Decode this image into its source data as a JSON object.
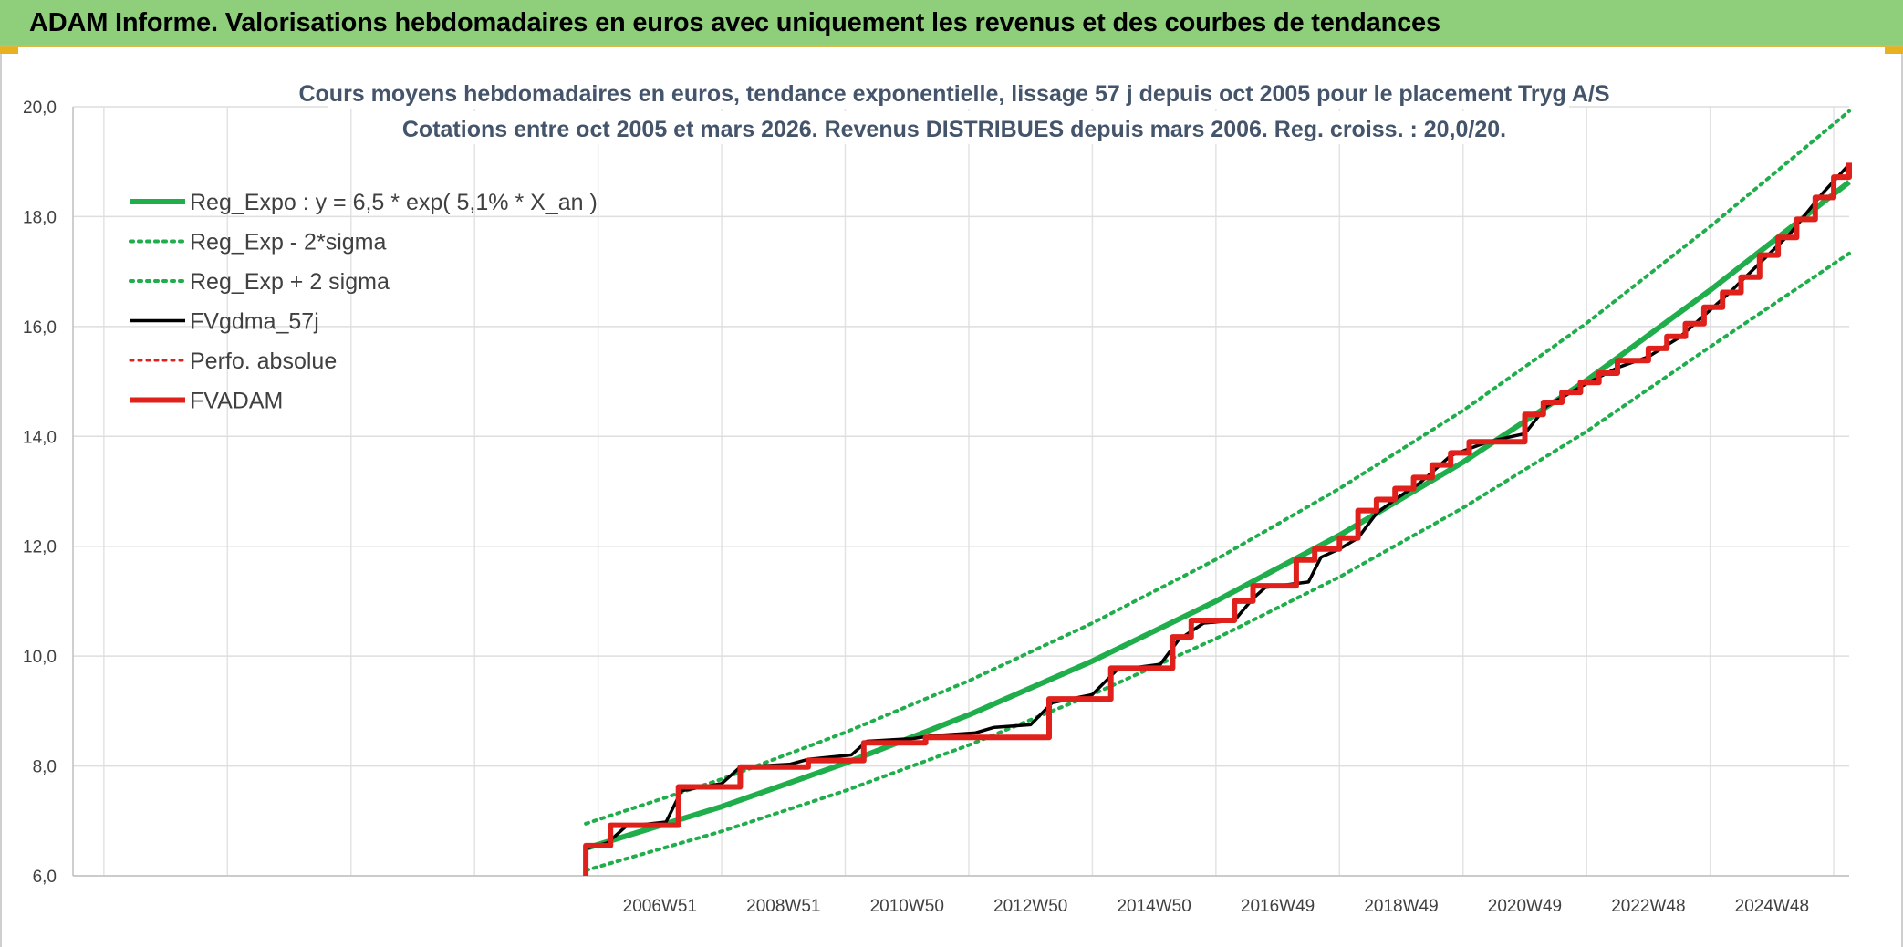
{
  "header": {
    "title": "ADAM Informe. Valorisations hebdomadaires en euros avec uniquement les revenus et des courbes de tendances"
  },
  "chart_data": {
    "type": "line",
    "title": "Cours moyens hebdomadaires en euros, tendance exponentielle, lissage 57 j depuis oct 2005 pour le placement Tryg A/S",
    "subtitle": "Cotations entre oct 2005 et mars 2026. Revenus DISTRIBUES depuis mars 2006. Reg. croiss. : 20,0/20.",
    "ylim": [
      6.0,
      20.0
    ],
    "y_ticks": [
      "6,0",
      "8,0",
      "10,0",
      "12,0",
      "14,0",
      "16,0",
      "18,0",
      "20,0"
    ],
    "x_ticks": [
      "2006W51",
      "2008W51",
      "2010W50",
      "2012W50",
      "2014W50",
      "2016W49",
      "2018W49",
      "2020W49",
      "2022W48",
      "2024W48"
    ],
    "x_range_years": [
      1997.5,
      2026.25
    ],
    "legend_placement": "top-left",
    "grid": true,
    "series": [
      {
        "name": "Reg_Expo : y = 6,5 * exp( 5,1% *  X_an )",
        "color": "#1fae4b",
        "style": "solid",
        "points": [
          [
            2005.8,
            6.5
          ],
          [
            2008,
            7.26
          ],
          [
            2010,
            8.05
          ],
          [
            2012,
            8.93
          ],
          [
            2014,
            9.91
          ],
          [
            2016,
            11.0
          ],
          [
            2018,
            12.2
          ],
          [
            2020,
            13.53
          ],
          [
            2022,
            15.02
          ],
          [
            2024,
            16.66
          ],
          [
            2026.25,
            18.63
          ]
        ]
      },
      {
        "name": "Reg_Exp - 2*sigma",
        "color": "#1fae4b",
        "style": "dotted",
        "points": [
          [
            2005.8,
            6.1
          ],
          [
            2008,
            6.81
          ],
          [
            2010,
            7.55
          ],
          [
            2012,
            8.38
          ],
          [
            2014,
            9.3
          ],
          [
            2016,
            10.32
          ],
          [
            2018,
            11.44
          ],
          [
            2020,
            12.7
          ],
          [
            2022,
            14.09
          ],
          [
            2024,
            15.63
          ],
          [
            2026.25,
            17.33
          ]
        ]
      },
      {
        "name": "Reg_Exp + 2 sigma",
        "color": "#1fae4b",
        "style": "dotted",
        "points": [
          [
            2005.8,
            6.95
          ],
          [
            2008,
            7.76
          ],
          [
            2010,
            8.61
          ],
          [
            2012,
            9.55
          ],
          [
            2014,
            10.6
          ],
          [
            2016,
            11.76
          ],
          [
            2018,
            13.05
          ],
          [
            2020,
            14.47
          ],
          [
            2022,
            16.06
          ],
          [
            2024,
            17.82
          ],
          [
            2026.25,
            19.92
          ]
        ]
      },
      {
        "name": "FVgdma_57j",
        "color": "#000000",
        "style": "solid",
        "points": [
          [
            2005.8,
            6.5
          ],
          [
            2006.15,
            6.6
          ],
          [
            2006.45,
            6.9
          ],
          [
            2007.1,
            6.98
          ],
          [
            2007.35,
            7.55
          ],
          [
            2008.0,
            7.68
          ],
          [
            2008.3,
            7.98
          ],
          [
            2009.1,
            8.03
          ],
          [
            2009.4,
            8.12
          ],
          [
            2010.1,
            8.2
          ],
          [
            2010.35,
            8.45
          ],
          [
            2011.1,
            8.5
          ],
          [
            2011.4,
            8.55
          ],
          [
            2012.1,
            8.6
          ],
          [
            2012.4,
            8.7
          ],
          [
            2013.0,
            8.75
          ],
          [
            2013.35,
            9.15
          ],
          [
            2014.0,
            9.3
          ],
          [
            2014.4,
            9.75
          ],
          [
            2015.1,
            9.85
          ],
          [
            2015.4,
            10.3
          ],
          [
            2015.8,
            10.6
          ],
          [
            2016.3,
            10.65
          ],
          [
            2016.6,
            11.05
          ],
          [
            2016.8,
            11.25
          ],
          [
            2017.5,
            11.35
          ],
          [
            2017.7,
            11.8
          ],
          [
            2018.0,
            11.95
          ],
          [
            2018.3,
            12.15
          ],
          [
            2018.6,
            12.6
          ],
          [
            2018.9,
            12.85
          ],
          [
            2019.3,
            13.15
          ],
          [
            2019.8,
            13.65
          ],
          [
            2020.4,
            13.9
          ],
          [
            2021.0,
            14.05
          ],
          [
            2021.35,
            14.55
          ],
          [
            2021.9,
            14.9
          ],
          [
            2022.5,
            15.25
          ],
          [
            2023.0,
            15.45
          ],
          [
            2023.5,
            15.8
          ],
          [
            2023.9,
            16.2
          ],
          [
            2024.3,
            16.6
          ],
          [
            2024.8,
            17.15
          ],
          [
            2025.3,
            17.7
          ],
          [
            2025.8,
            18.4
          ],
          [
            2026.25,
            18.95
          ]
        ]
      },
      {
        "name": "Perfo. absolue",
        "color": "#e0201b",
        "style": "dotted",
        "points": []
      },
      {
        "name": "FVADAM",
        "color": "#e0201b",
        "style": "solid",
        "points": [
          [
            2005.8,
            6.0
          ],
          [
            2005.8,
            6.55
          ],
          [
            2006.2,
            6.55
          ],
          [
            2006.2,
            6.92
          ],
          [
            2007.3,
            6.92
          ],
          [
            2007.3,
            7.62
          ],
          [
            2008.3,
            7.62
          ],
          [
            2008.3,
            7.98
          ],
          [
            2009.4,
            7.98
          ],
          [
            2009.4,
            8.1
          ],
          [
            2010.3,
            8.1
          ],
          [
            2010.3,
            8.42
          ],
          [
            2011.3,
            8.42
          ],
          [
            2011.3,
            8.52
          ],
          [
            2013.3,
            8.52
          ],
          [
            2013.3,
            9.22
          ],
          [
            2014.3,
            9.22
          ],
          [
            2014.3,
            9.78
          ],
          [
            2015.3,
            9.78
          ],
          [
            2015.3,
            10.35
          ],
          [
            2015.6,
            10.35
          ],
          [
            2015.6,
            10.65
          ],
          [
            2016.3,
            10.65
          ],
          [
            2016.3,
            11.0
          ],
          [
            2016.6,
            11.0
          ],
          [
            2016.6,
            11.28
          ],
          [
            2017.3,
            11.28
          ],
          [
            2017.3,
            11.75
          ],
          [
            2017.6,
            11.75
          ],
          [
            2017.6,
            11.95
          ],
          [
            2018.0,
            11.95
          ],
          [
            2018.0,
            12.15
          ],
          [
            2018.3,
            12.15
          ],
          [
            2018.3,
            12.65
          ],
          [
            2018.6,
            12.65
          ],
          [
            2018.6,
            12.85
          ],
          [
            2018.9,
            12.85
          ],
          [
            2018.9,
            13.05
          ],
          [
            2019.2,
            13.05
          ],
          [
            2019.2,
            13.25
          ],
          [
            2019.5,
            13.25
          ],
          [
            2019.5,
            13.48
          ],
          [
            2019.8,
            13.48
          ],
          [
            2019.8,
            13.7
          ],
          [
            2020.1,
            13.7
          ],
          [
            2020.1,
            13.9
          ],
          [
            2021.0,
            13.9
          ],
          [
            2021.0,
            14.4
          ],
          [
            2021.3,
            14.4
          ],
          [
            2021.3,
            14.62
          ],
          [
            2021.6,
            14.62
          ],
          [
            2021.6,
            14.8
          ],
          [
            2021.9,
            14.8
          ],
          [
            2021.9,
            14.98
          ],
          [
            2022.2,
            14.98
          ],
          [
            2022.2,
            15.15
          ],
          [
            2022.5,
            15.15
          ],
          [
            2022.5,
            15.38
          ],
          [
            2023.0,
            15.38
          ],
          [
            2023.0,
            15.6
          ],
          [
            2023.3,
            15.6
          ],
          [
            2023.3,
            15.82
          ],
          [
            2023.6,
            15.82
          ],
          [
            2023.6,
            16.05
          ],
          [
            2023.9,
            16.05
          ],
          [
            2023.9,
            16.35
          ],
          [
            2024.2,
            16.35
          ],
          [
            2024.2,
            16.62
          ],
          [
            2024.5,
            16.62
          ],
          [
            2024.5,
            16.9
          ],
          [
            2024.8,
            16.9
          ],
          [
            2024.8,
            17.3
          ],
          [
            2025.1,
            17.3
          ],
          [
            2025.1,
            17.62
          ],
          [
            2025.4,
            17.62
          ],
          [
            2025.4,
            17.95
          ],
          [
            2025.7,
            17.95
          ],
          [
            2025.7,
            18.35
          ],
          [
            2026.0,
            18.35
          ],
          [
            2026.0,
            18.72
          ],
          [
            2026.25,
            18.72
          ],
          [
            2026.25,
            18.98
          ]
        ]
      }
    ]
  }
}
